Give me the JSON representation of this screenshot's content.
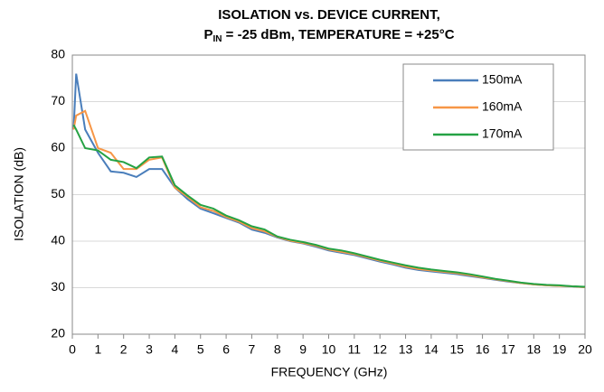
{
  "chart_data": {
    "type": "line",
    "title": "ISOLATION vs. DEVICE CURRENT,",
    "subtitle_parts": [
      "P",
      "IN",
      " = -25 dBm, TEMPERATURE = +25°C"
    ],
    "x_label": "FREQUENCY (GHz)",
    "y_label": "ISOLATION (dB)",
    "x": [
      0.05,
      0.15,
      0.5,
      1,
      1.5,
      2,
      2.5,
      3,
      3.5,
      4,
      4.5,
      5,
      5.5,
      6,
      6.5,
      7,
      7.5,
      8,
      8.5,
      9,
      9.5,
      10,
      10.5,
      11,
      11.5,
      12,
      12.5,
      13,
      13.5,
      14,
      14.5,
      15,
      15.5,
      16,
      16.5,
      17,
      17.5,
      18,
      18.5,
      19,
      19.5,
      20
    ],
    "series": [
      {
        "name": "150mA",
        "color": "#4a7ebb",
        "values": [
          64,
          76,
          64,
          59,
          55,
          54.7,
          53.8,
          55.5,
          55.5,
          51.5,
          49,
          47,
          46,
          45,
          44,
          42.5,
          41.8,
          40.8,
          40,
          39.5,
          38.8,
          38,
          37.5,
          37,
          36.3,
          35.6,
          35,
          34.3,
          33.8,
          33.5,
          33.2,
          32.9,
          32.5,
          32.1,
          31.7,
          31.3,
          31,
          30.7,
          30.5,
          30.4,
          30.3,
          30.1
        ]
      },
      {
        "name": "160mA",
        "color": "#f79646",
        "values": [
          64,
          67,
          68,
          60,
          59,
          55.5,
          55.5,
          57.5,
          58,
          51.5,
          49.5,
          47.3,
          46.5,
          45.2,
          44.2,
          42.8,
          42.1,
          40.9,
          40.1,
          39.6,
          39,
          38.2,
          37.7,
          37.2,
          36.5,
          35.8,
          35.2,
          34.5,
          34,
          33.7,
          33.4,
          33.1,
          32.7,
          32.2,
          31.8,
          31.4,
          31,
          30.7,
          30.5,
          30.4,
          30.3,
          30.1
        ]
      },
      {
        "name": "170mA",
        "color": "#25a244",
        "values": [
          65,
          64,
          60,
          59.5,
          57.5,
          57,
          55.7,
          58,
          58.2,
          52,
          49.8,
          47.8,
          47,
          45.5,
          44.5,
          43.2,
          42.5,
          41,
          40.3,
          39.8,
          39.2,
          38.4,
          38,
          37.4,
          36.7,
          36,
          35.4,
          34.8,
          34.3,
          33.9,
          33.6,
          33.3,
          32.9,
          32.4,
          31.9,
          31.5,
          31.1,
          30.8,
          30.6,
          30.5,
          30.3,
          30.2
        ]
      }
    ],
    "xlim": [
      0,
      20
    ],
    "xticks": [
      0,
      1,
      2,
      3,
      4,
      5,
      6,
      7,
      8,
      9,
      10,
      11,
      12,
      13,
      14,
      15,
      16,
      17,
      18,
      19,
      20
    ],
    "ylim": [
      20,
      80
    ],
    "yticks": [
      20,
      30,
      40,
      50,
      60,
      70,
      80
    ],
    "grid": true,
    "legend": "upper-right"
  }
}
